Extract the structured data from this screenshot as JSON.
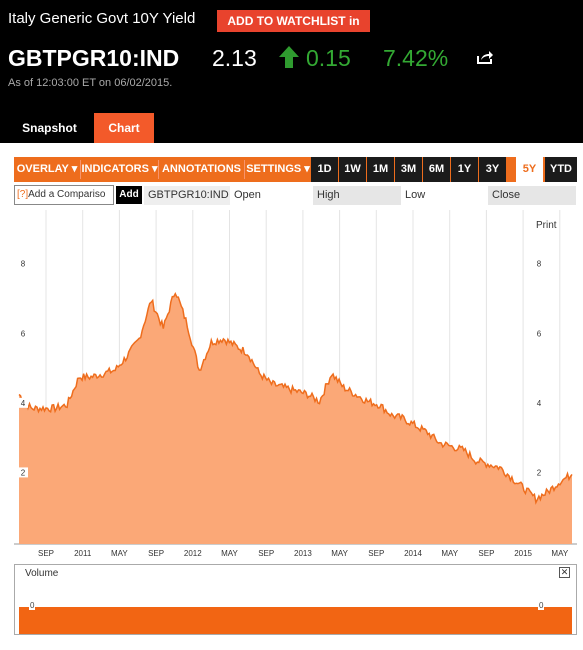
{
  "header": {
    "title": "Italy Generic Govt 10Y Yield",
    "watchlist_label": "ADD TO WATCHLIST in",
    "ticker": "GBTPGR10:IND",
    "price": "2.13",
    "change": "0.15",
    "change_pct": "7.42%",
    "as_of": "As of 12:03:00 ET on 06/02/2015.",
    "colors": {
      "up": "#33a933",
      "accent": "#f35a2a"
    }
  },
  "tabs": {
    "snapshot": "Snapshot",
    "chart": "Chart"
  },
  "toolbar": {
    "menus": [
      "OVERLAY ▾",
      "INDICATORS ▾",
      "ANNOTATIONS ▾",
      "SETTINGS ▾"
    ],
    "ranges": [
      "1D",
      "1W",
      "1M",
      "3M",
      "6M",
      "1Y",
      "3Y",
      "5Y",
      "YTD"
    ],
    "active_range": "5Y"
  },
  "compare": {
    "placeholder_prefix": "[?]",
    "placeholder": "Add a Compariso",
    "add_label": "Add",
    "ticker_field": "GBTPGR10:IND",
    "open_label": "Open",
    "high_label": "High",
    "low_label": "Low",
    "close_label": "Close"
  },
  "chart": {
    "print_label": "Print",
    "volume_label": "Volume",
    "volume_tick": "0",
    "close_icon": "close-icon"
  },
  "chart_data": {
    "type": "area",
    "x_labels": [
      "SEP",
      "2011",
      "MAY",
      "SEP",
      "2012",
      "MAY",
      "SEP",
      "2013",
      "MAY",
      "SEP",
      "2014",
      "MAY",
      "SEP",
      "2015",
      "MAY"
    ],
    "y_ticks": [
      "8",
      "6",
      "4",
      "2"
    ],
    "ylim": [
      0,
      9.6
    ],
    "series": [
      {
        "values": [
          4.3,
          3.9,
          3.9,
          3.9,
          4.0,
          4.8,
          4.8,
          4.9,
          5.0,
          5.4,
          5.9,
          7.0,
          6.2,
          7.3,
          6.3,
          5.0,
          5.8,
          5.9,
          5.7,
          5.5,
          4.9,
          4.6,
          4.5,
          4.4,
          4.3,
          4.1,
          4.9,
          4.5,
          4.3,
          4.1,
          4.0,
          3.7,
          3.6,
          3.4,
          3.2,
          2.9,
          2.8,
          2.7,
          2.4,
          2.3,
          2.2,
          1.9,
          1.6,
          1.3,
          1.5,
          1.8,
          2.0
        ]
      }
    ]
  }
}
